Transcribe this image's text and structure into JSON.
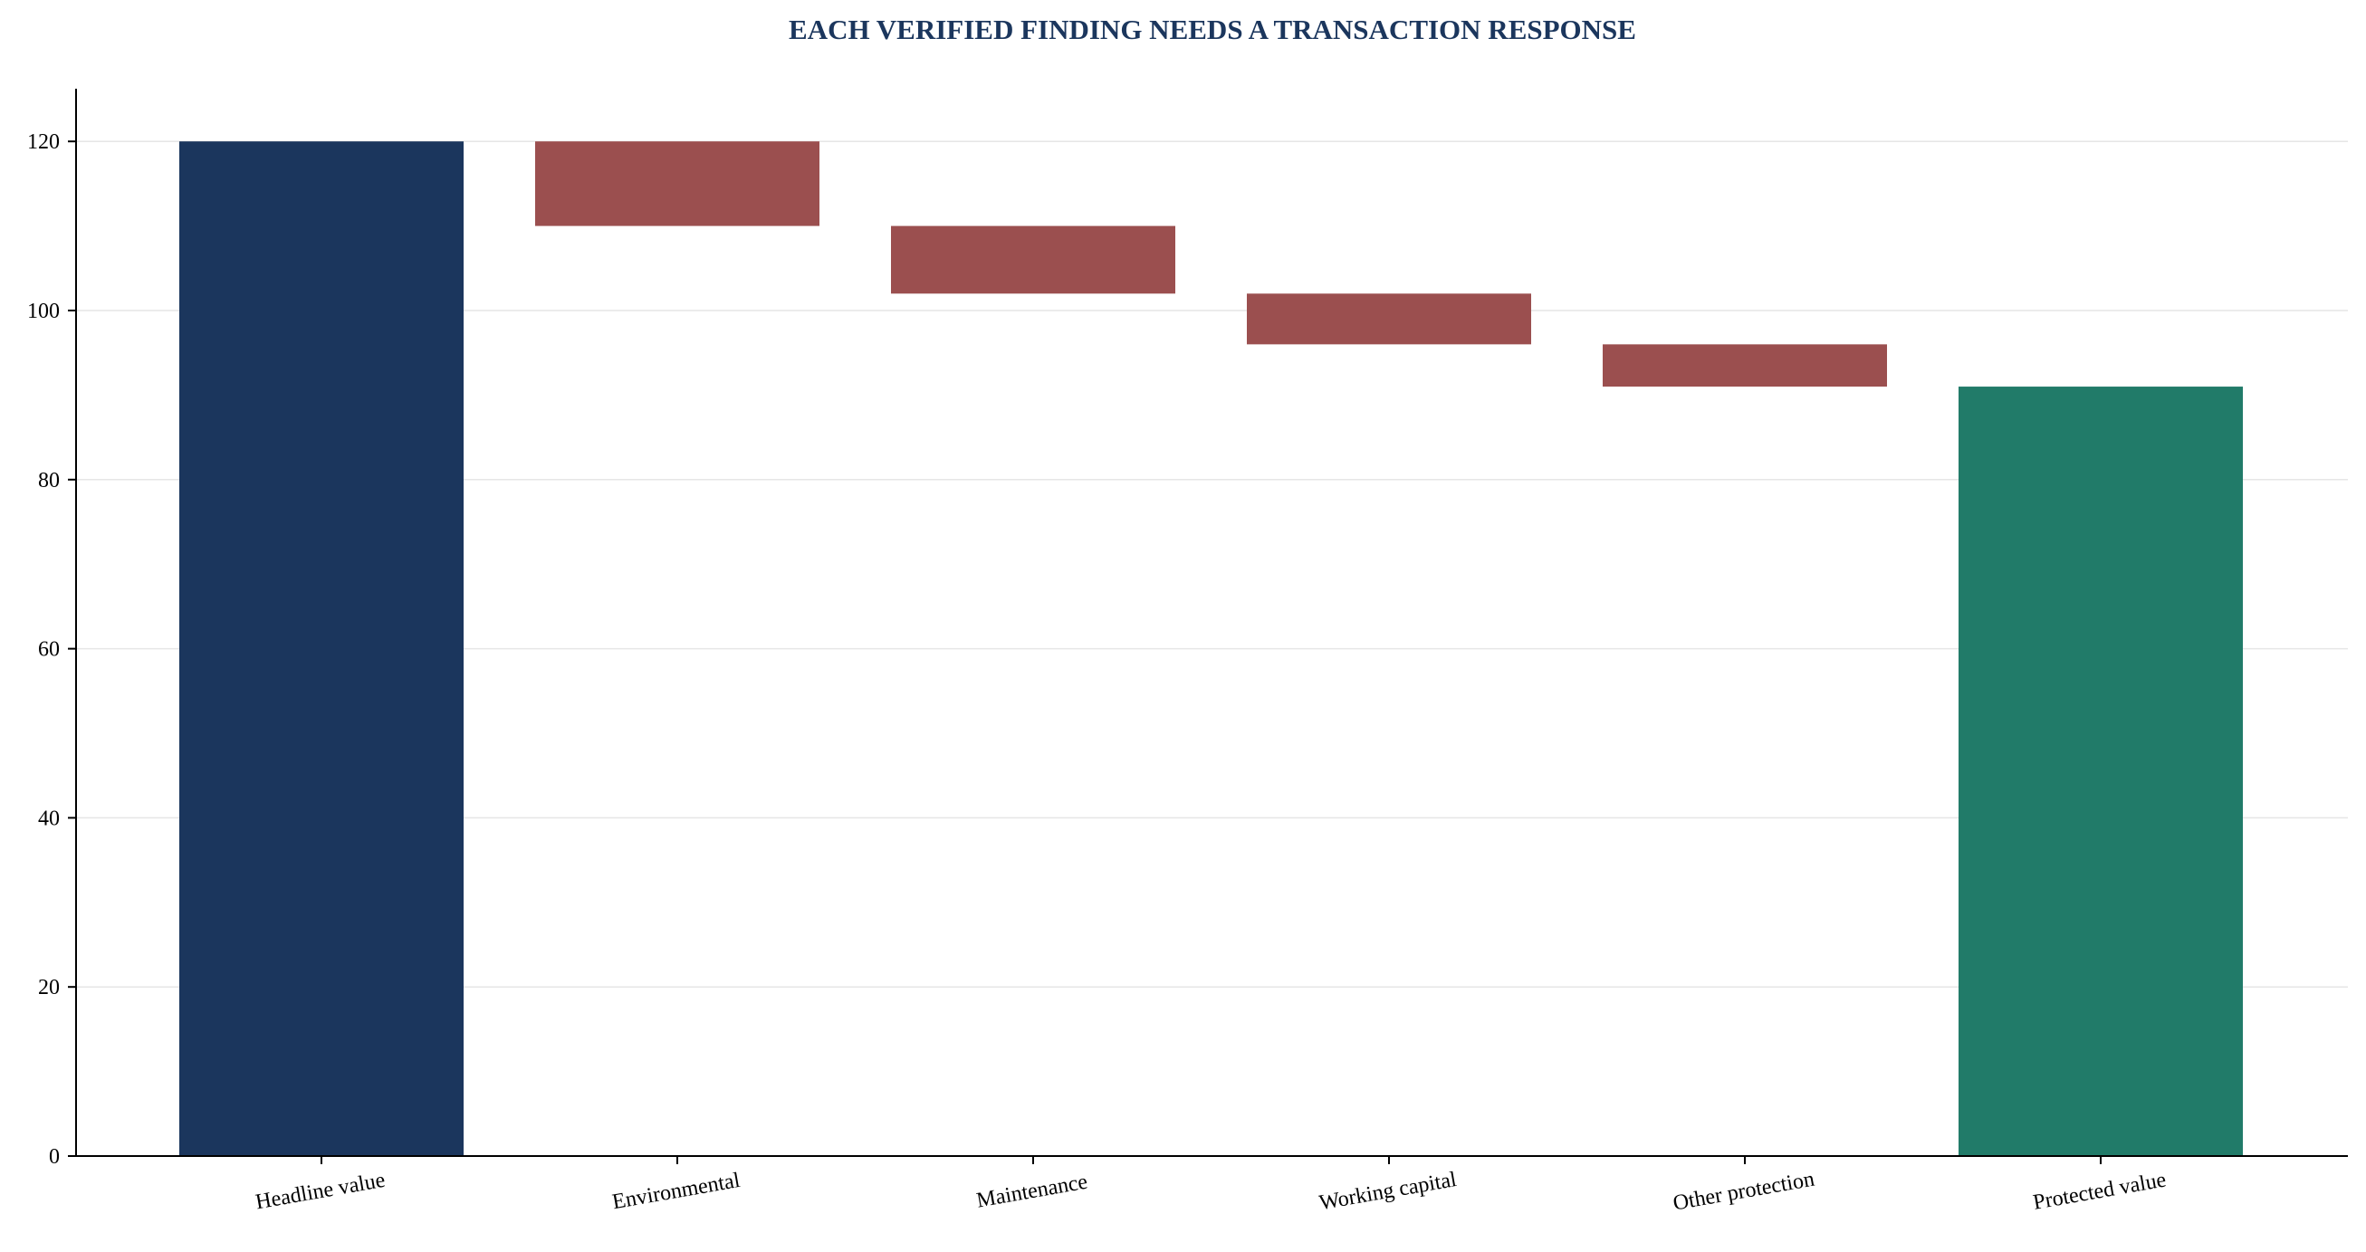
{
  "chart_data": {
    "type": "bar",
    "subtype": "waterfall",
    "title": "EACH VERIFIED FINDING NEEDS A TRANSACTION RESPONSE",
    "xlabel": "",
    "ylabel": "",
    "ylim": [
      0,
      126
    ],
    "yticks": [
      0,
      20,
      40,
      60,
      80,
      100,
      120
    ],
    "grid": true,
    "categories": [
      "Headline value",
      "Environmental",
      "Maintenance",
      "Working capital",
      "Other protection",
      "Protected value"
    ],
    "bars": [
      {
        "category": "Headline value",
        "kind": "total",
        "start": 0,
        "end": 120,
        "value": 120
      },
      {
        "category": "Environmental",
        "kind": "decrease",
        "start": 120,
        "end": 110,
        "value": -10
      },
      {
        "category": "Maintenance",
        "kind": "decrease",
        "start": 110,
        "end": 102,
        "value": -8
      },
      {
        "category": "Working capital",
        "kind": "decrease",
        "start": 102,
        "end": 96,
        "value": -6
      },
      {
        "category": "Other protection",
        "kind": "decrease",
        "start": 96,
        "end": 91,
        "value": -5
      },
      {
        "category": "Protected value",
        "kind": "total",
        "start": 0,
        "end": 91,
        "value": 91
      }
    ],
    "colors": {
      "total_start": "#1b365d",
      "decrease": "#9b4f4f",
      "total_end": "#217b69",
      "title": "#1b365d"
    }
  }
}
